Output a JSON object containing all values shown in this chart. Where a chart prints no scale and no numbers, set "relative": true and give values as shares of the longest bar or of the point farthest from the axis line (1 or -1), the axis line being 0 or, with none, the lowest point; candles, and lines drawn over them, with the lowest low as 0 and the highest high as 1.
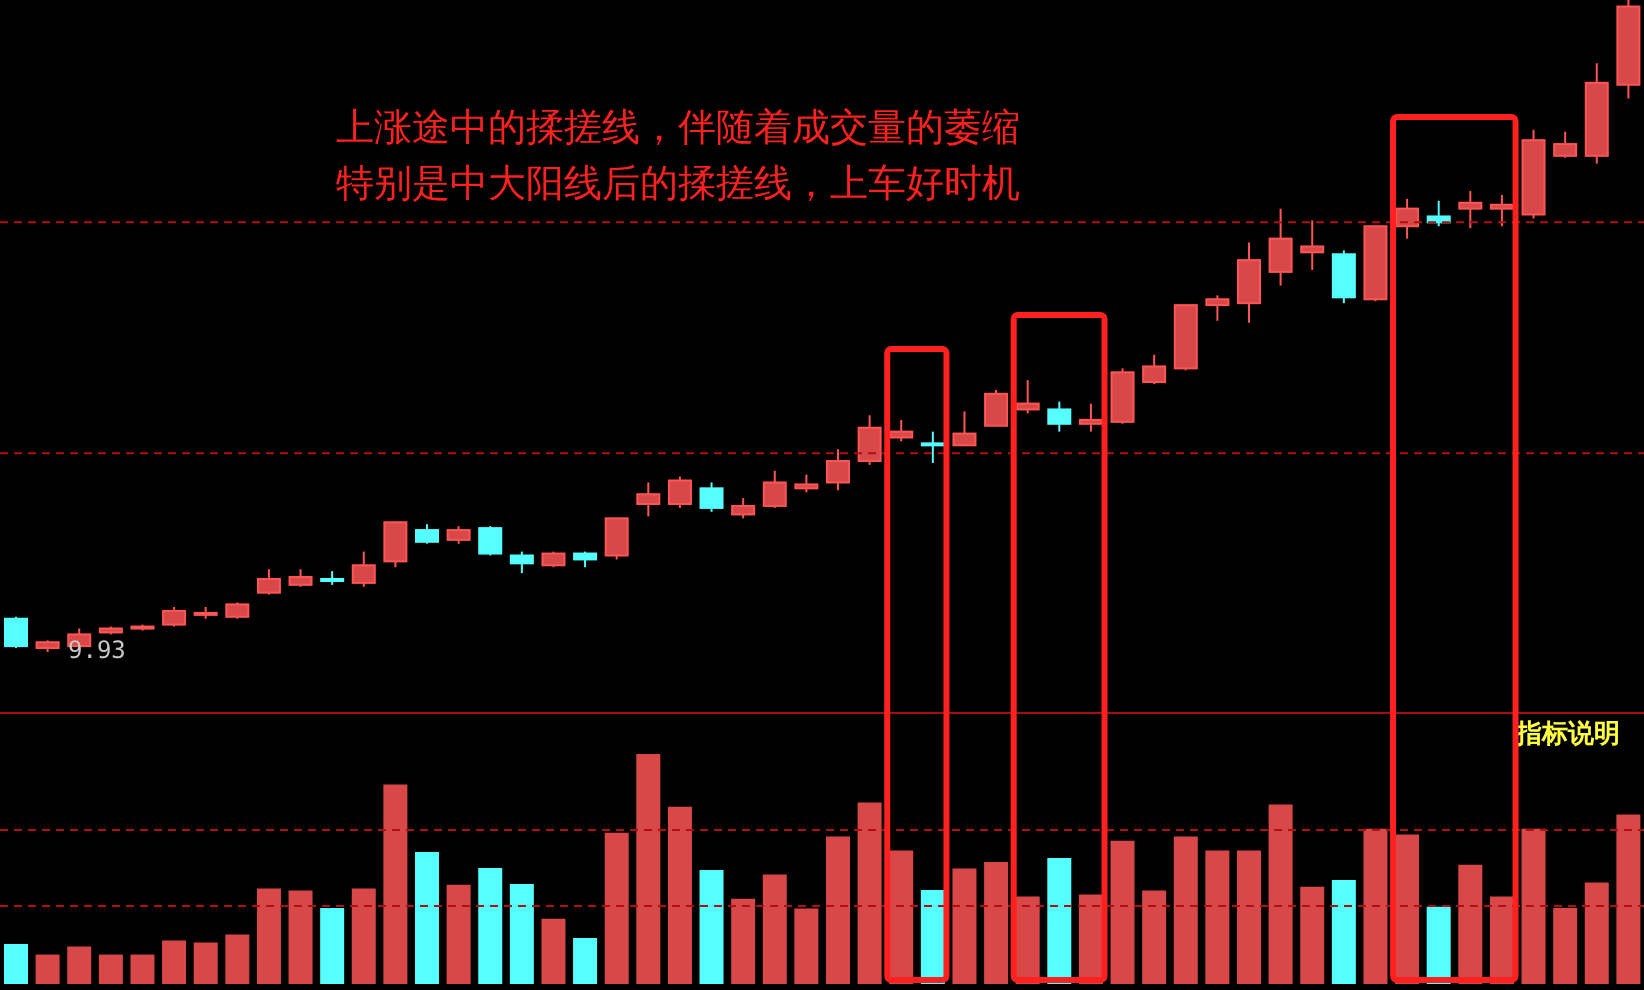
{
  "chart_data": [
    {
      "type": "candlestick",
      "relative": true,
      "categories": [
        null,
        null,
        null,
        null,
        null,
        null,
        null,
        null,
        null,
        null,
        null,
        null,
        null,
        null,
        null,
        null,
        null,
        null,
        null,
        null,
        null,
        null,
        null,
        null,
        null,
        null,
        null,
        null,
        null,
        null,
        null,
        null,
        null,
        null,
        null,
        null,
        null,
        null,
        null,
        null,
        null,
        null,
        null,
        null,
        null,
        null,
        null,
        null,
        null,
        null,
        null,
        null
      ],
      "ohlc": [
        [
          0.051,
          0.054,
          0.006,
          0.009
        ],
        [
          0.006,
          0.018,
          0,
          0.015
        ],
        [
          0.009,
          0.036,
          0.003,
          0.027
        ],
        [
          0.03,
          0.039,
          0.027,
          0.036
        ],
        [
          0.036,
          0.042,
          0.033,
          0.039
        ],
        [
          0.042,
          0.069,
          0.039,
          0.063
        ],
        [
          0.057,
          0.069,
          0.051,
          0.06
        ],
        [
          0.054,
          0.076,
          0.051,
          0.073
        ],
        [
          0.091,
          0.127,
          0.088,
          0.112
        ],
        [
          0.103,
          0.127,
          0.1,
          0.115
        ],
        [
          0.112,
          0.124,
          0.103,
          0.109
        ],
        [
          0.106,
          0.154,
          0.1,
          0.133
        ],
        [
          0.139,
          0.199,
          0.13,
          0.199
        ],
        [
          0.187,
          0.196,
          0.166,
          0.169
        ],
        [
          0.172,
          0.193,
          0.166,
          0.187
        ],
        [
          0.19,
          0.193,
          0.148,
          0.151
        ],
        [
          0.148,
          0.154,
          0.121,
          0.136
        ],
        [
          0.133,
          0.154,
          0.13,
          0.151
        ],
        [
          0.151,
          0.154,
          0.13,
          0.142
        ],
        [
          0.148,
          0.205,
          0.142,
          0.205
        ],
        [
          0.227,
          0.26,
          0.208,
          0.242
        ],
        [
          0.227,
          0.269,
          0.221,
          0.263
        ],
        [
          0.251,
          0.26,
          0.215,
          0.221
        ],
        [
          0.211,
          0.236,
          0.205,
          0.224
        ],
        [
          0.224,
          0.278,
          0.221,
          0.26
        ],
        [
          0.251,
          0.272,
          0.245,
          0.257
        ],
        [
          0.26,
          0.311,
          0.248,
          0.293
        ],
        [
          0.293,
          0.363,
          0.287,
          0.344
        ],
        [
          0.329,
          0.356,
          0.323,
          0.338
        ],
        [
          0.32,
          0.338,
          0.29,
          0.317
        ],
        [
          0.317,
          0.369,
          0.317,
          0.335
        ],
        [
          0.347,
          0.402,
          0.347,
          0.396
        ],
        [
          0.372,
          0.417,
          0.366,
          0.381
        ],
        [
          0.372,
          0.384,
          0.338,
          0.35
        ],
        [
          0.35,
          0.381,
          0.338,
          0.356
        ],
        [
          0.353,
          0.435,
          0.35,
          0.429
        ],
        [
          0.414,
          0.456,
          0.411,
          0.438
        ],
        [
          0.435,
          0.532,
          0.432,
          0.532
        ],
        [
          0.532,
          0.547,
          0.508,
          0.541
        ],
        [
          0.535,
          0.628,
          0.505,
          0.601
        ],
        [
          0.583,
          0.68,
          0.562,
          0.634
        ],
        [
          0.613,
          0.662,
          0.586,
          0.622
        ],
        [
          0.61,
          0.616,
          0.535,
          0.544
        ],
        [
          0.541,
          0.653,
          0.538,
          0.653
        ],
        [
          0.653,
          0.695,
          0.634,
          0.68
        ],
        [
          0.668,
          0.692,
          0.653,
          0.659
        ],
        [
          0.68,
          0.707,
          0.65,
          0.689
        ],
        [
          0.68,
          0.701,
          0.653,
          0.686
        ],
        [
          0.671,
          0.801,
          0.665,
          0.785
        ],
        [
          0.761,
          0.798,
          0.758,
          0.779
        ],
        [
          0.761,
          0.903,
          0.749,
          0.873
        ],
        [
          0.87,
          1,
          0.849,
          0.99
        ]
      ],
      "colors": [
        "#55ffff",
        "#ff5555",
        "#ff5555",
        "#ff5555",
        "#ff5555",
        "#ff5555",
        "#ff5555",
        "#ff5555",
        "#ff5555",
        "#ff5555",
        "#55ffff",
        "#ff5555",
        "#ff5555",
        "#55ffff",
        "#ff5555",
        "#55ffff",
        "#55ffff",
        "#ff5555",
        "#55ffff",
        "#ff5555",
        "#ff5555",
        "#ff5555",
        "#55ffff",
        "#ff5555",
        "#ff5555",
        "#ff5555",
        "#ff5555",
        "#ff5555",
        "#ff5555",
        "#55ffff",
        "#ff5555",
        "#ff5555",
        "#ff5555",
        "#55ffff",
        "#ff5555",
        "#ff5555",
        "#ff5555",
        "#ff5555",
        "#ff5555",
        "#ff5555",
        "#ff5555",
        "#ff5555",
        "#55ffff",
        "#ff5555",
        "#ff5555",
        "#55ffff",
        "#ff5555",
        "#ff5555",
        "#ff5555",
        "#ff5555",
        "#ff5555",
        "#ff5555"
      ],
      "ref_lines": [
        {
          "axis": "y",
          "value": 0.659,
          "color": "#b01010",
          "line_style": "dashed"
        },
        {
          "axis": "y",
          "value": 0.305,
          "color": "#b01010",
          "line_style": "dashed"
        }
      ],
      "annotations": [
        "上涨途中的揉搓线，伴随着成交量的萎缩",
        "特别是中大阳线后的揉搓线，上车好时机",
        "9.93"
      ]
    },
    {
      "type": "bar",
      "relative": true,
      "categories": [
        null,
        null,
        null,
        null,
        null,
        null,
        null,
        null,
        null,
        null,
        null,
        null,
        null,
        null,
        null,
        null,
        null,
        null,
        null,
        null,
        null,
        null,
        null,
        null,
        null,
        null,
        null,
        null,
        null,
        null,
        null,
        null,
        null,
        null,
        null,
        null,
        null,
        null,
        null,
        null,
        null,
        null,
        null,
        null,
        null,
        null,
        null,
        null,
        null,
        null,
        null,
        null
      ],
      "values": [
        0.174,
        0.128,
        0.163,
        0.128,
        0.128,
        0.189,
        0.18,
        0.215,
        0.415,
        0.406,
        0.33,
        0.415,
        0.867,
        0.574,
        0.432,
        0.504,
        0.435,
        0.284,
        0.2,
        0.658,
        1,
        0.771,
        0.496,
        0.371,
        0.476,
        0.328,
        0.641,
        0.789,
        0.58,
        0.409,
        0.502,
        0.53,
        0.38,
        0.548,
        0.389,
        0.623,
        0.406,
        0.641,
        0.58,
        0.58,
        0.78,
        0.423,
        0.452,
        0.675,
        0.65,
        0.336,
        0.519,
        0.38,
        0.675,
        0.33,
        0.441,
        0.737
      ],
      "colors": [
        "#55ffff",
        "#ff5555",
        "#ff5555",
        "#ff5555",
        "#ff5555",
        "#ff5555",
        "#ff5555",
        "#ff5555",
        "#ff5555",
        "#ff5555",
        "#55ffff",
        "#ff5555",
        "#ff5555",
        "#55ffff",
        "#ff5555",
        "#55ffff",
        "#55ffff",
        "#ff5555",
        "#55ffff",
        "#ff5555",
        "#ff5555",
        "#ff5555",
        "#55ffff",
        "#ff5555",
        "#ff5555",
        "#ff5555",
        "#ff5555",
        "#ff5555",
        "#ff5555",
        "#55ffff",
        "#ff5555",
        "#ff5555",
        "#ff5555",
        "#55ffff",
        "#ff5555",
        "#ff5555",
        "#ff5555",
        "#ff5555",
        "#ff5555",
        "#ff5555",
        "#ff5555",
        "#ff5555",
        "#55ffff",
        "#ff5555",
        "#ff5555",
        "#55ffff",
        "#ff5555",
        "#ff5555",
        "#ff5555",
        "#ff5555",
        "#ff5555",
        "#ff5555"
      ],
      "ref_lines": [
        {
          "axis": "y",
          "value": 0.67,
          "color": "#b01010",
          "line_style": "dashed"
        },
        {
          "axis": "y",
          "value": 0.339,
          "color": "#b01010",
          "line_style": "dashed"
        }
      ],
      "annotations": [
        "指标说明"
      ]
    }
  ]
}
